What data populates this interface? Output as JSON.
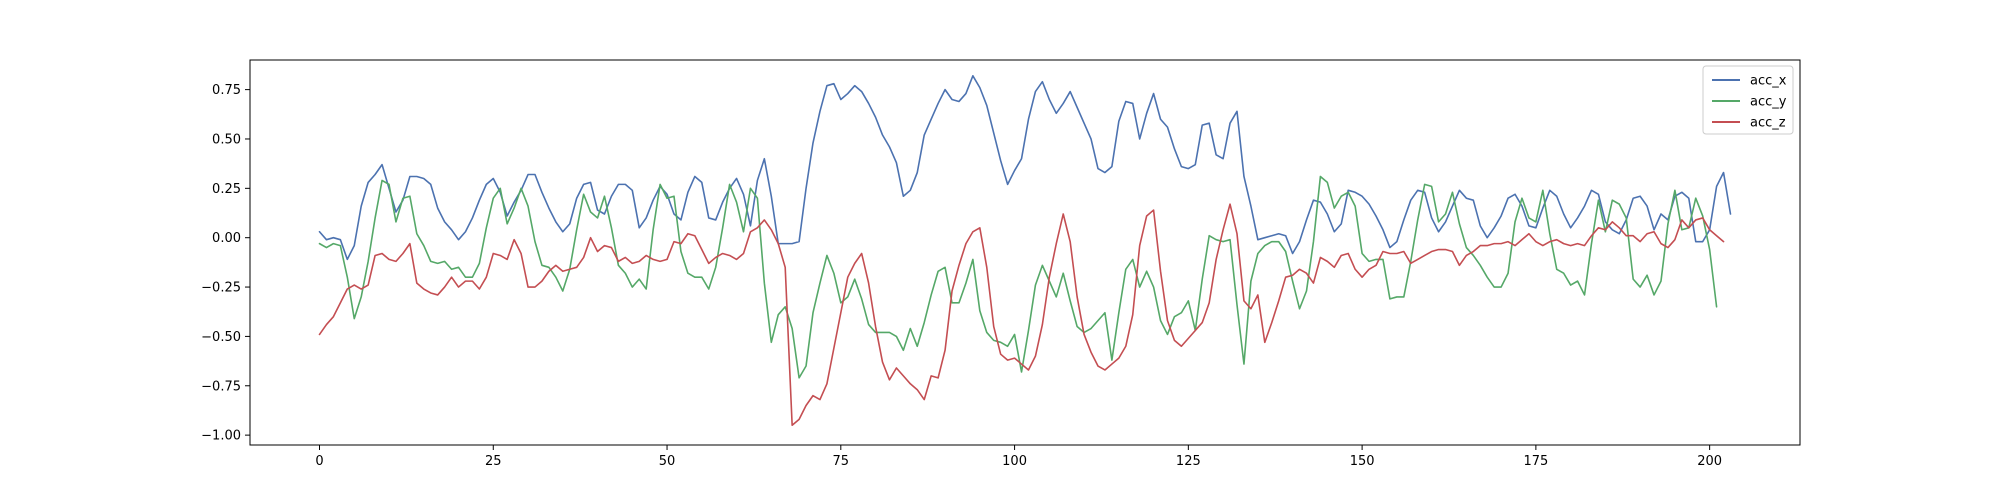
{
  "chart_data": {
    "type": "line",
    "title": "",
    "xlabel": "",
    "ylabel": "",
    "xlim": [
      -10,
      213
    ],
    "ylim": [
      -1.05,
      0.9
    ],
    "xticks": [
      0,
      25,
      50,
      75,
      100,
      125,
      150,
      175,
      200
    ],
    "yticks": [
      -1.0,
      -0.75,
      -0.5,
      -0.25,
      0.0,
      0.25,
      0.5,
      0.75
    ],
    "xtick_labels": [
      "0",
      "25",
      "50",
      "75",
      "100",
      "125",
      "150",
      "175",
      "200"
    ],
    "ytick_labels": [
      "−1.00",
      "−0.75",
      "−0.50",
      "−0.25",
      "0.00",
      "0.25",
      "0.50",
      "0.75"
    ],
    "grid": false,
    "legend_position": "top-right",
    "series": [
      {
        "name": "acc_x",
        "color": "#4c72b0",
        "values": [
          0.03,
          -0.01,
          0.0,
          -0.01,
          -0.11,
          -0.04,
          0.16,
          0.28,
          0.32,
          0.37,
          0.25,
          0.13,
          0.19,
          0.31,
          0.31,
          0.3,
          0.27,
          0.15,
          0.08,
          0.04,
          -0.01,
          0.03,
          0.1,
          0.19,
          0.27,
          0.3,
          0.23,
          0.11,
          0.18,
          0.24,
          0.32,
          0.32,
          0.23,
          0.15,
          0.08,
          0.03,
          0.07,
          0.2,
          0.27,
          0.28,
          0.14,
          0.12,
          0.21,
          0.27,
          0.27,
          0.24,
          0.05,
          0.1,
          0.19,
          0.26,
          0.22,
          0.12,
          0.09,
          0.23,
          0.31,
          0.28,
          0.1,
          0.09,
          0.18,
          0.25,
          0.3,
          0.22,
          0.06,
          0.29,
          0.4,
          0.21,
          -0.03,
          -0.03,
          -0.03,
          -0.02,
          0.25,
          0.48,
          0.64,
          0.77,
          0.78,
          0.7,
          0.73,
          0.77,
          0.74,
          0.68,
          0.61,
          0.52,
          0.46,
          0.38,
          0.21,
          0.24,
          0.33,
          0.52,
          0.6,
          0.68,
          0.75,
          0.7,
          0.69,
          0.73,
          0.82,
          0.76,
          0.67,
          0.53,
          0.39,
          0.27,
          0.34,
          0.4,
          0.6,
          0.74,
          0.79,
          0.7,
          0.63,
          0.68,
          0.74,
          0.66,
          0.58,
          0.5,
          0.35,
          0.33,
          0.36,
          0.59,
          0.69,
          0.68,
          0.5,
          0.63,
          0.73,
          0.6,
          0.56,
          0.45,
          0.36,
          0.35,
          0.37,
          0.57,
          0.58,
          0.42,
          0.4,
          0.58,
          0.64,
          0.31,
          0.16,
          -0.01,
          0.0,
          0.01,
          0.02,
          0.01,
          -0.08,
          -0.02,
          0.09,
          0.19,
          0.18,
          0.12,
          0.03,
          0.07,
          0.24,
          0.23,
          0.21,
          0.17,
          0.11,
          0.04,
          -0.05,
          -0.02,
          0.09,
          0.19,
          0.24,
          0.23,
          0.1,
          0.03,
          0.08,
          0.16,
          0.24,
          0.2,
          0.19,
          0.06,
          0.0,
          0.05,
          0.11,
          0.2,
          0.22,
          0.16,
          0.06,
          0.05,
          0.15,
          0.24,
          0.21,
          0.12,
          0.05,
          0.1,
          0.16,
          0.24,
          0.22,
          0.08,
          0.04,
          0.02,
          0.09,
          0.2,
          0.21,
          0.16,
          0.04,
          0.12,
          0.09,
          0.21,
          0.23,
          0.2,
          -0.02,
          -0.02,
          0.04,
          0.26,
          0.33,
          0.12
        ]
      },
      {
        "name": "acc_y",
        "color": "#55a868",
        "values": [
          -0.03,
          -0.05,
          -0.03,
          -0.04,
          -0.2,
          -0.41,
          -0.3,
          -0.12,
          0.1,
          0.29,
          0.27,
          0.08,
          0.2,
          0.21,
          0.02,
          -0.04,
          -0.12,
          -0.13,
          -0.12,
          -0.16,
          -0.15,
          -0.2,
          -0.2,
          -0.13,
          0.05,
          0.2,
          0.25,
          0.07,
          0.15,
          0.25,
          0.16,
          -0.02,
          -0.14,
          -0.15,
          -0.2,
          -0.27,
          -0.16,
          0.04,
          0.22,
          0.13,
          0.1,
          0.21,
          0.05,
          -0.14,
          -0.18,
          -0.25,
          -0.21,
          -0.26,
          0.04,
          0.27,
          0.2,
          0.21,
          -0.07,
          -0.18,
          -0.2,
          -0.2,
          -0.26,
          -0.15,
          0.05,
          0.27,
          0.18,
          0.03,
          0.25,
          0.2,
          -0.23,
          -0.53,
          -0.39,
          -0.35,
          -0.46,
          -0.71,
          -0.65,
          -0.38,
          -0.23,
          -0.09,
          -0.18,
          -0.33,
          -0.3,
          -0.21,
          -0.31,
          -0.44,
          -0.48,
          -0.48,
          -0.48,
          -0.5,
          -0.57,
          -0.46,
          -0.55,
          -0.43,
          -0.29,
          -0.17,
          -0.15,
          -0.33,
          -0.33,
          -0.23,
          -0.11,
          -0.37,
          -0.48,
          -0.52,
          -0.53,
          -0.55,
          -0.49,
          -0.68,
          -0.47,
          -0.24,
          -0.14,
          -0.22,
          -0.3,
          -0.18,
          -0.32,
          -0.45,
          -0.48,
          -0.46,
          -0.42,
          -0.38,
          -0.62,
          -0.38,
          -0.16,
          -0.11,
          -0.25,
          -0.17,
          -0.25,
          -0.42,
          -0.49,
          -0.4,
          -0.38,
          -0.32,
          -0.47,
          -0.21,
          0.01,
          -0.01,
          -0.02,
          -0.01,
          -0.34,
          -0.64,
          -0.22,
          -0.08,
          -0.04,
          -0.02,
          -0.02,
          -0.07,
          -0.22,
          -0.36,
          -0.27,
          -0.02,
          0.31,
          0.28,
          0.15,
          0.21,
          0.23,
          0.16,
          -0.08,
          -0.12,
          -0.11,
          -0.11,
          -0.31,
          -0.3,
          -0.3,
          -0.12,
          0.09,
          0.27,
          0.26,
          0.08,
          0.12,
          0.23,
          0.07,
          -0.05,
          -0.09,
          -0.14,
          -0.2,
          -0.25,
          -0.25,
          -0.18,
          0.08,
          0.2,
          0.1,
          0.08,
          0.24,
          0.02,
          -0.16,
          -0.18,
          -0.24,
          -0.22,
          -0.29,
          -0.03,
          0.19,
          0.03,
          0.19,
          0.17,
          0.1,
          -0.21,
          -0.25,
          -0.19,
          -0.29,
          -0.22,
          0.07,
          0.24,
          0.04,
          0.05,
          0.2,
          0.11,
          -0.06,
          -0.35
        ]
      },
      {
        "name": "acc_z",
        "color": "#c44e52",
        "values": [
          -0.49,
          -0.44,
          -0.4,
          -0.33,
          -0.26,
          -0.24,
          -0.26,
          -0.24,
          -0.09,
          -0.08,
          -0.11,
          -0.12,
          -0.08,
          -0.03,
          -0.23,
          -0.26,
          -0.28,
          -0.29,
          -0.25,
          -0.2,
          -0.25,
          -0.22,
          -0.22,
          -0.26,
          -0.2,
          -0.08,
          -0.09,
          -0.11,
          -0.01,
          -0.08,
          -0.25,
          -0.25,
          -0.22,
          -0.17,
          -0.14,
          -0.17,
          -0.16,
          -0.15,
          -0.1,
          0.0,
          -0.07,
          -0.04,
          -0.05,
          -0.12,
          -0.1,
          -0.13,
          -0.12,
          -0.09,
          -0.11,
          -0.12,
          -0.11,
          -0.02,
          -0.03,
          0.02,
          0.01,
          -0.06,
          -0.13,
          -0.1,
          -0.08,
          -0.09,
          -0.11,
          -0.08,
          0.03,
          0.05,
          0.09,
          0.04,
          -0.03,
          -0.15,
          -0.95,
          -0.92,
          -0.85,
          -0.8,
          -0.82,
          -0.74,
          -0.56,
          -0.38,
          -0.2,
          -0.13,
          -0.08,
          -0.23,
          -0.45,
          -0.63,
          -0.72,
          -0.66,
          -0.7,
          -0.74,
          -0.77,
          -0.82,
          -0.7,
          -0.71,
          -0.57,
          -0.27,
          -0.14,
          -0.03,
          0.03,
          0.05,
          -0.15,
          -0.45,
          -0.59,
          -0.62,
          -0.61,
          -0.64,
          -0.67,
          -0.6,
          -0.44,
          -0.2,
          -0.03,
          0.12,
          -0.02,
          -0.3,
          -0.49,
          -0.58,
          -0.65,
          -0.67,
          -0.64,
          -0.61,
          -0.55,
          -0.39,
          -0.04,
          0.11,
          0.14,
          -0.17,
          -0.42,
          -0.52,
          -0.55,
          -0.51,
          -0.47,
          -0.43,
          -0.33,
          -0.11,
          0.04,
          0.17,
          0.02,
          -0.32,
          -0.36,
          -0.29,
          -0.53,
          -0.43,
          -0.32,
          -0.2,
          -0.19,
          -0.16,
          -0.18,
          -0.23,
          -0.1,
          -0.12,
          -0.15,
          -0.09,
          -0.08,
          -0.16,
          -0.2,
          -0.16,
          -0.14,
          -0.07,
          -0.08,
          -0.08,
          -0.07,
          -0.13,
          -0.11,
          -0.09,
          -0.07,
          -0.06,
          -0.06,
          -0.07,
          -0.14,
          -0.09,
          -0.07,
          -0.04,
          -0.04,
          -0.03,
          -0.03,
          -0.02,
          -0.04,
          -0.01,
          0.02,
          -0.02,
          -0.04,
          -0.02,
          -0.01,
          -0.03,
          -0.04,
          -0.03,
          -0.04,
          0.01,
          0.05,
          0.04,
          0.08,
          0.05,
          0.01,
          0.01,
          -0.02,
          0.02,
          0.03,
          -0.03,
          -0.05,
          -0.01,
          0.09,
          0.05,
          0.09,
          0.1,
          0.04,
          0.01,
          -0.02
        ]
      }
    ]
  }
}
